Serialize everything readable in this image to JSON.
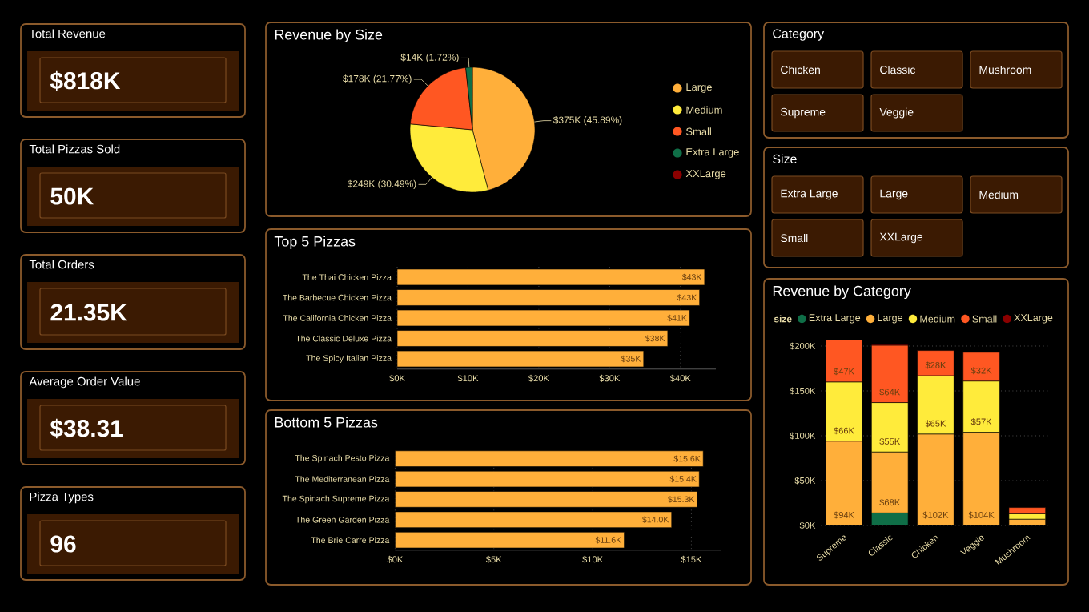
{
  "chart_data": [
    {
      "type": "other",
      "title": "Total Revenue",
      "annotations": [
        "$818K"
      ]
    },
    {
      "type": "other",
      "title": "Total Pizzas Sold",
      "annotations": [
        "50K"
      ]
    },
    {
      "type": "other",
      "title": "Total Orders",
      "annotations": [
        "21.35K"
      ]
    },
    {
      "type": "other",
      "title": "Average Order Value",
      "annotations": [
        "$38.31"
      ]
    },
    {
      "type": "other",
      "title": "Pizza Types",
      "annotations": [
        "96"
      ]
    },
    {
      "type": "pie",
      "title": "Revenue by Size",
      "categories": [
        "Large",
        "Medium",
        "Small",
        "Extra Large",
        "XXLarge"
      ],
      "values": [
        45.89,
        30.49,
        21.77,
        1.72,
        null
      ],
      "colors": [
        "#FFAF3A",
        "#FFEB3B",
        "#FF5722",
        "#0F6E47",
        "#8B0000"
      ],
      "value_labels": [
        "$375K (45.89%)",
        "$249K (30.49%)",
        "$178K (21.77%)",
        "$14K (1.72%)",
        null
      ],
      "legend": "right"
    },
    {
      "type": "bar",
      "orientation": "horizontal",
      "title": "Top 5 Pizzas",
      "categories": [
        "The Thai Chicken Pizza",
        "The Barbecue Chicken Pizza",
        "The California Chicken Pizza",
        "The Classic Deluxe Pizza",
        "The Spicy Italian Pizza"
      ],
      "values": [
        43.4,
        42.7,
        41.3,
        38.2,
        34.8
      ],
      "value_labels": [
        "$43K",
        "$43K",
        "$41K",
        "$38K",
        "$35K"
      ],
      "color": "#FFAF3A",
      "xlim": [
        0,
        45
      ],
      "xticks": [
        {
          "value": 0,
          "label": "$0K"
        },
        {
          "value": 10,
          "label": "$10K"
        },
        {
          "value": 20,
          "label": "$20K"
        },
        {
          "value": 30,
          "label": "$30K"
        },
        {
          "value": 40,
          "label": "$40K"
        }
      ],
      "grid": "x"
    },
    {
      "type": "bar",
      "orientation": "horizontal",
      "title": "Bottom 5 Pizzas",
      "categories": [
        "The Spinach Pesto Pizza",
        "The Mediterranean Pizza",
        "The Spinach Supreme Pizza",
        "The Green Garden Pizza",
        "The Brie Carre Pizza"
      ],
      "values": [
        15.6,
        15.4,
        15.3,
        14.0,
        11.6
      ],
      "value_labels": [
        "$15.6K",
        "$15.4K",
        "$15.3K",
        "$14.0K",
        "$11.6K"
      ],
      "color": "#FFAF3A",
      "xlim": [
        0,
        16.5
      ],
      "xticks": [
        {
          "value": 0,
          "label": "$0K"
        },
        {
          "value": 5,
          "label": "$5K"
        },
        {
          "value": 10,
          "label": "$10K"
        },
        {
          "value": 15,
          "label": "$15K"
        }
      ],
      "grid": "x"
    },
    {
      "type": "other",
      "title": "Category",
      "annotations": [
        "Chicken",
        "Classic",
        "Mushroom",
        "Supreme",
        "Veggie"
      ]
    },
    {
      "type": "other",
      "title": "Size",
      "annotations": [
        "Extra Large",
        "Large",
        "Medium",
        "Small",
        "XXLarge"
      ]
    },
    {
      "type": "bar",
      "stacked": true,
      "title": "Revenue by Category",
      "legend_title": "size",
      "legend": "top",
      "grid": "y",
      "categories": [
        "Supreme",
        "Classic",
        "Chicken",
        "Veggie",
        "Mushroom"
      ],
      "ylim": [
        0,
        210
      ],
      "yticks": [
        {
          "value": 0,
          "label": "$0K"
        },
        {
          "value": 50,
          "label": "$50K"
        },
        {
          "value": 100,
          "label": "$100K"
        },
        {
          "value": 150,
          "label": "$150K"
        },
        {
          "value": 200,
          "label": "$200K"
        }
      ],
      "series": [
        {
          "name": "Extra Large",
          "color": "#0F6E47",
          "values": [
            null,
            14,
            null,
            null,
            null
          ]
        },
        {
          "name": "Large",
          "color": "#FFAF3A",
          "values": [
            94,
            68,
            102,
            104,
            7
          ],
          "value_labels": [
            "$94K",
            "$68K",
            "$102K",
            "$104K",
            null
          ]
        },
        {
          "name": "Medium",
          "color": "#FFEB3B",
          "values": [
            66,
            55,
            65,
            57,
            6
          ],
          "value_labels": [
            "$66K",
            "$55K",
            "$65K",
            "$57K",
            null
          ]
        },
        {
          "name": "Small",
          "color": "#FF5722",
          "values": [
            47,
            64,
            28,
            32,
            7
          ],
          "value_labels": [
            "$47K",
            "$64K",
            "$28K",
            "$32K",
            null
          ]
        },
        {
          "name": "XXLarge",
          "color": "#8B0000",
          "values": [
            null,
            1,
            null,
            null,
            null
          ]
        }
      ]
    }
  ]
}
